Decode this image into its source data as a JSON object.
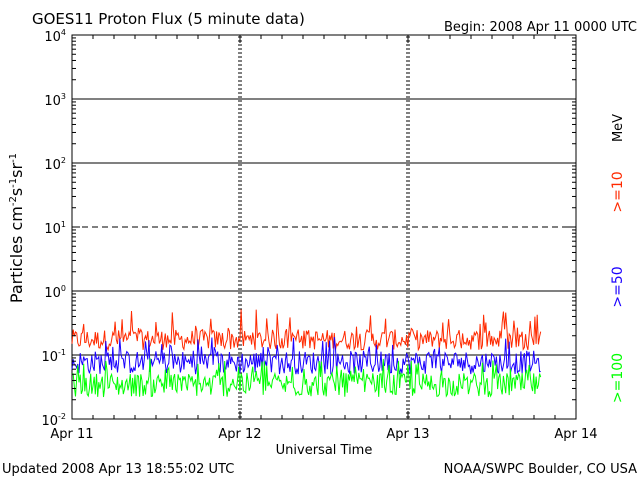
{
  "chart_data": {
    "type": "line",
    "title": "GOES11 Proton Flux (5 minute data)",
    "begin": "Begin: 2008 Apr 11 0000 UTC",
    "xlabel": "Universal Time",
    "ylabel": "Particles cm-2s-1sr-1",
    "ylabel_base": "Particles cm",
    "ylabel_exp1": "-2",
    "ylabel_mid1": "s",
    "ylabel_exp2": "-1",
    "ylabel_mid2": "sr",
    "ylabel_exp3": "-1",
    "y_scale": "log",
    "ylim": [
      0.01,
      10000
    ],
    "x_ticks": [
      "Apr 11",
      "Apr 12",
      "Apr 13",
      "Apr 14"
    ],
    "y_ticks": [
      {
        "value": 0.01,
        "base": "10",
        "exp": "-2"
      },
      {
        "value": 0.1,
        "base": "10",
        "exp": "-1"
      },
      {
        "value": 1,
        "base": "10",
        "exp": "0"
      },
      {
        "value": 10,
        "base": "10",
        "exp": "1"
      },
      {
        "value": 100,
        "base": "10",
        "exp": "2"
      },
      {
        "value": 1000,
        "base": "10",
        "exp": "3"
      },
      {
        "value": 10000,
        "base": "10",
        "exp": "4"
      }
    ],
    "unit_label": "MeV",
    "data_end_day": 2.79,
    "series": [
      {
        "name": ">=10",
        "color": "#ff2a00",
        "mean": 0.19,
        "low": 0.12,
        "high": 0.52
      },
      {
        "name": ">=50",
        "color": "#1a00ff",
        "mean": 0.085,
        "low": 0.05,
        "high": 0.2
      },
      {
        "name": ">=100",
        "color": "#00ff00",
        "mean": 0.038,
        "low": 0.022,
        "high": 0.09
      }
    ],
    "grid_lines": [
      {
        "value": 1000,
        "style": "solid"
      },
      {
        "value": 100,
        "style": "solid"
      },
      {
        "value": 10,
        "style": "dashed"
      },
      {
        "value": 1,
        "style": "solid"
      },
      {
        "value": 0.1,
        "style": "solid"
      }
    ],
    "footer_left": "Updated 2008 Apr 13 18:55:02 UTC",
    "footer_right": "NOAA/SWPC Boulder, CO USA"
  }
}
